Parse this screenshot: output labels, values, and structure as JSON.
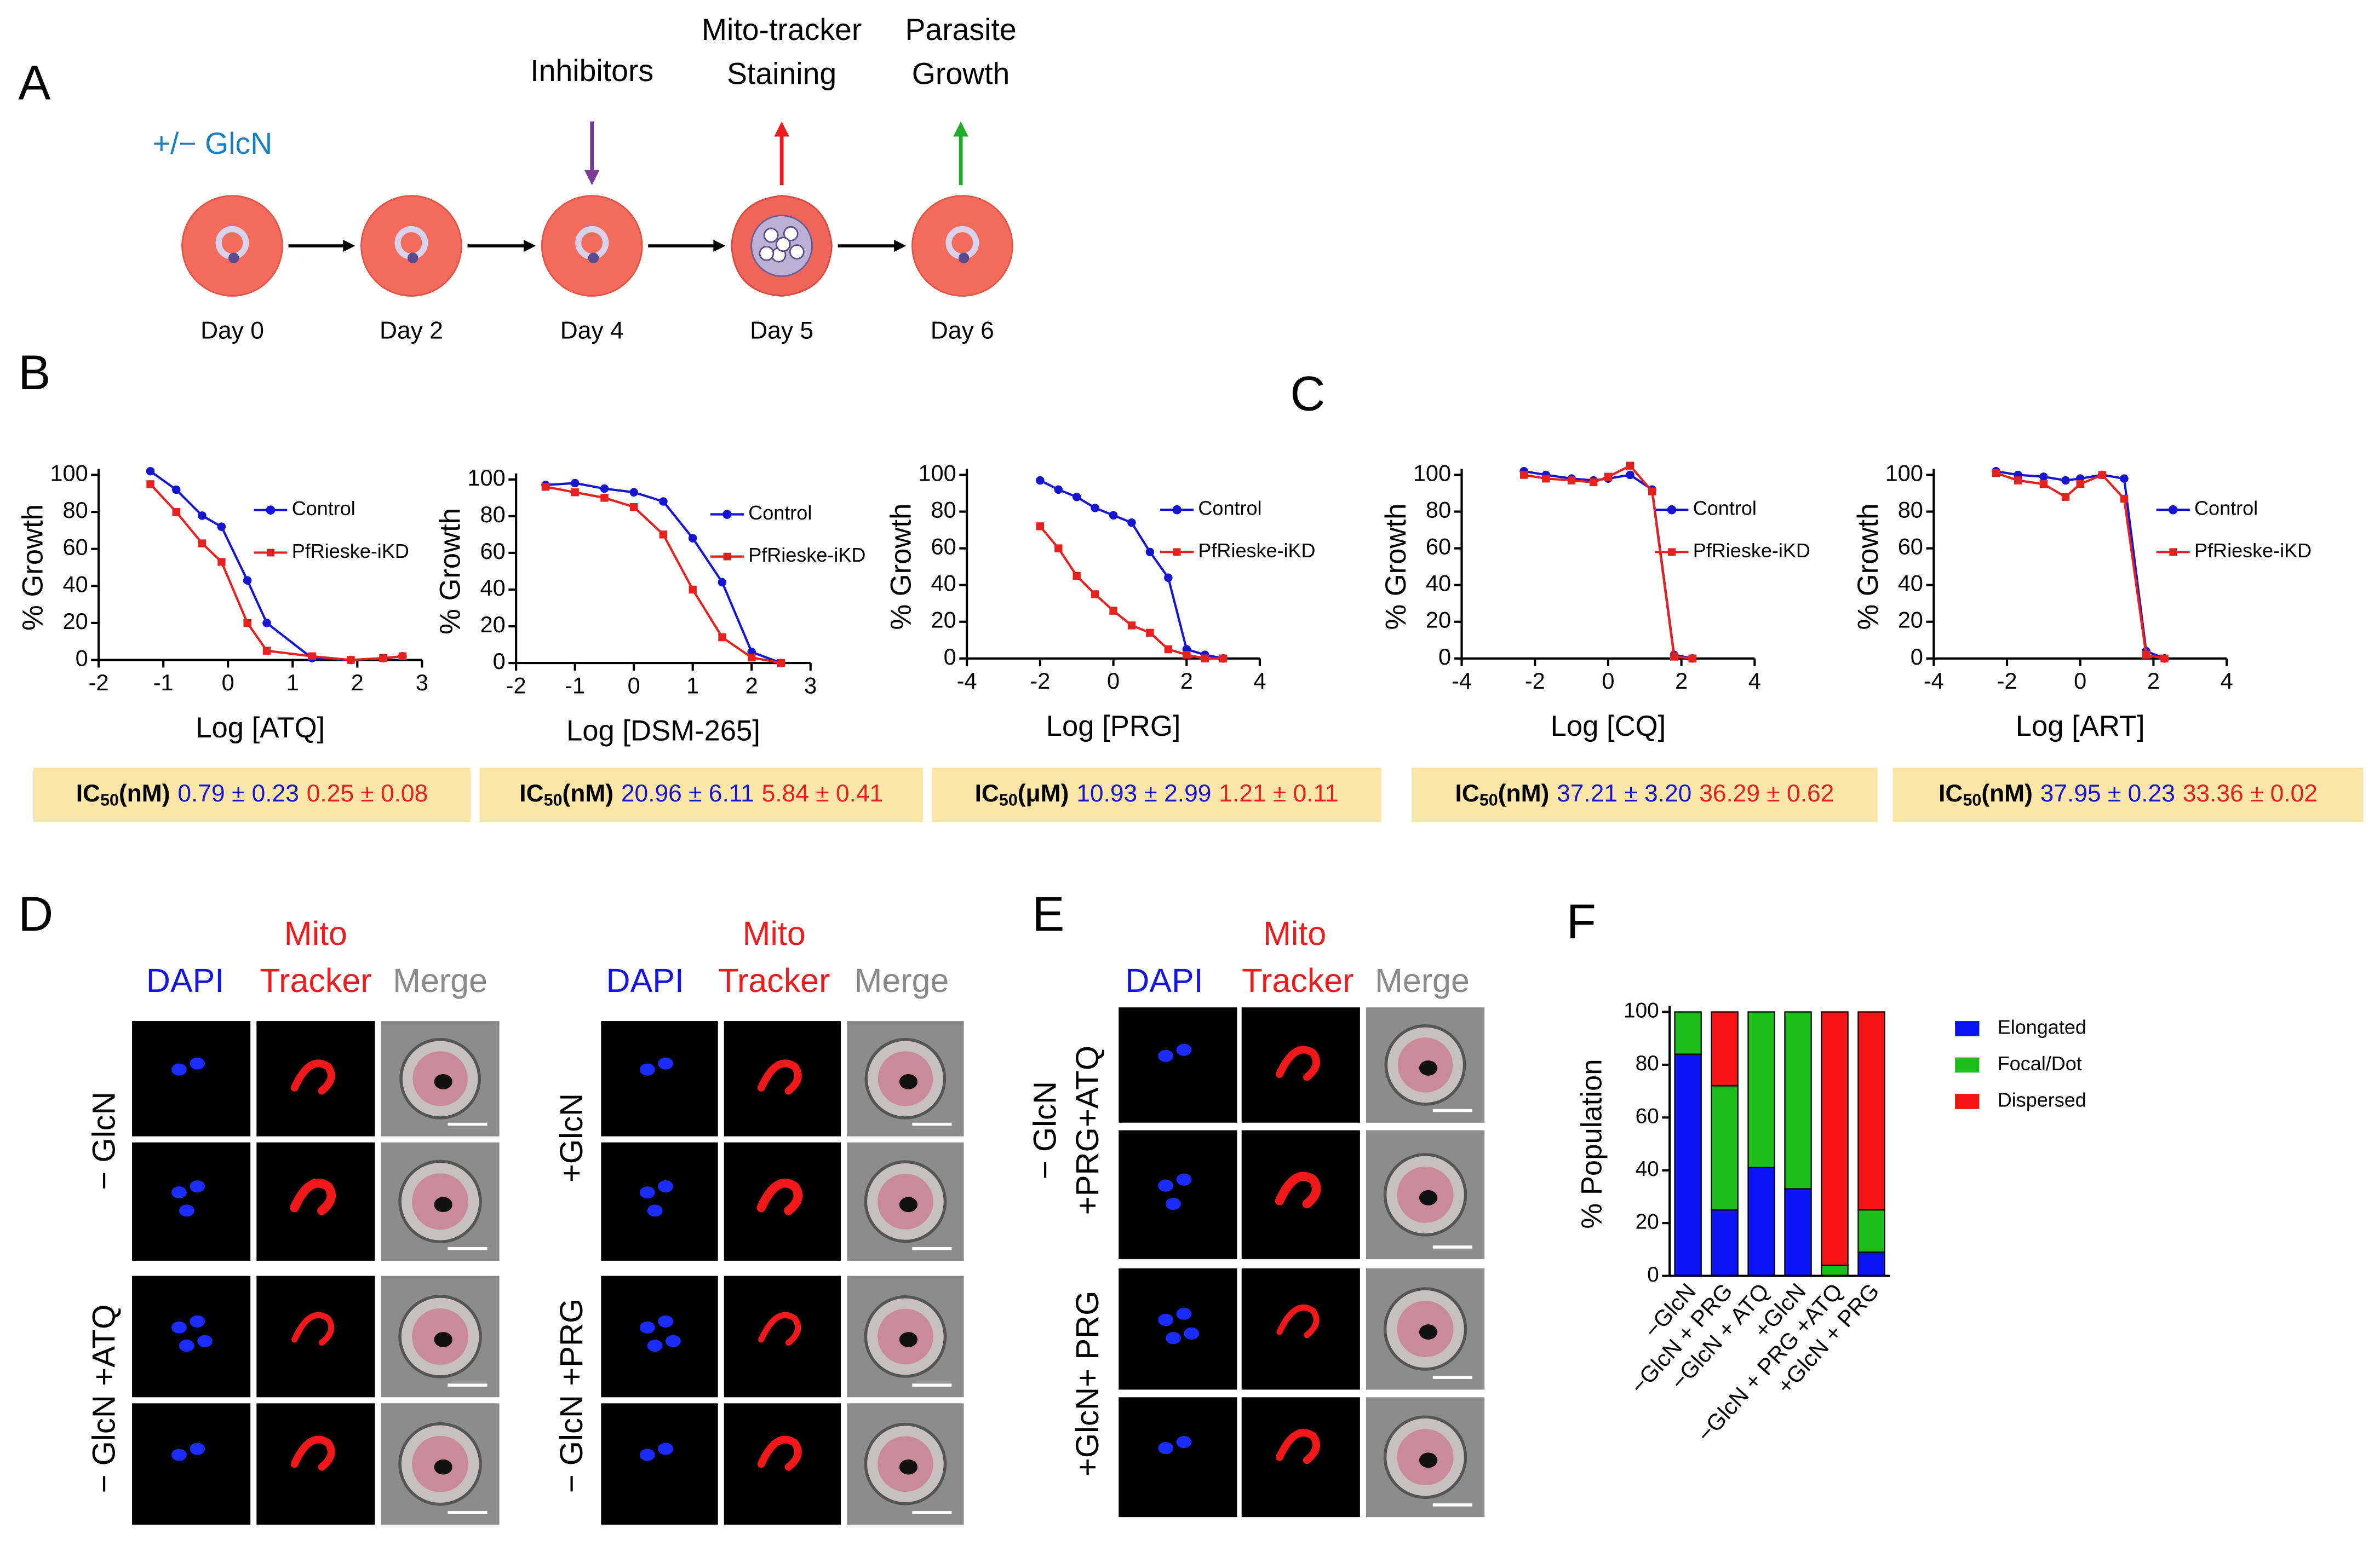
{
  "panels": [
    "A",
    "B",
    "C",
    "D",
    "E",
    "F"
  ],
  "timeline": {
    "treatment": "+/− GlcN",
    "days": [
      "Day 0",
      "Day 2",
      "Day 4",
      "Day 5",
      "Day 6"
    ],
    "events": [
      {
        "lines": [
          "Inhibitors"
        ],
        "color": "#7b3a96"
      },
      {
        "lines": [
          "Mito-tracker",
          "Staining"
        ],
        "color": "#ee1c1c"
      },
      {
        "lines": [
          "Parasite",
          "Growth"
        ],
        "color": "#1fae2a"
      }
    ]
  },
  "chart_data": [
    {
      "type": "line",
      "xlabel": "Log [ATQ]",
      "ylabel": "% Growth",
      "xlim": [
        -2,
        3
      ],
      "xticks": [
        -2,
        -1,
        0,
        1,
        2,
        3
      ],
      "ylim": [
        0,
        100
      ],
      "yticks": [
        0,
        20,
        40,
        60,
        80,
        100
      ],
      "x": [
        -1.2,
        -0.8,
        -0.4,
        -0.1,
        0.3,
        0.6,
        1.3,
        1.9,
        2.4,
        2.7
      ],
      "series": [
        {
          "name": "Control",
          "color": "#1414d2",
          "marker": "circle",
          "values": [
            102,
            92,
            78,
            72,
            43,
            20,
            1,
            0,
            1,
            2
          ]
        },
        {
          "name": "PfRieske-iKD",
          "color": "#e8201e",
          "marker": "square",
          "values": [
            95,
            80,
            63,
            53,
            20,
            5,
            2,
            0,
            1,
            2
          ]
        }
      ]
    },
    {
      "type": "line",
      "xlabel": "Log [DSM-265]",
      "ylabel": "% Growth",
      "xlim": [
        -2,
        3
      ],
      "xticks": [
        -2,
        -1,
        0,
        1,
        2,
        3
      ],
      "ylim": [
        0,
        100
      ],
      "yticks": [
        0,
        20,
        40,
        60,
        80,
        100
      ],
      "x": [
        -1.5,
        -1,
        -0.5,
        0,
        0.5,
        1,
        1.5,
        2,
        2.5
      ],
      "series": [
        {
          "name": "Control",
          "color": "#1414d2",
          "marker": "circle",
          "values": [
            97,
            98,
            95,
            93,
            88,
            68,
            44,
            6,
            0
          ]
        },
        {
          "name": "PfRieske-iKD",
          "color": "#e8201e",
          "marker": "square",
          "values": [
            96,
            93,
            90,
            85,
            70,
            40,
            14,
            3,
            0
          ]
        }
      ]
    },
    {
      "type": "line",
      "xlabel": "Log [PRG]",
      "ylabel": "% Growth",
      "xlim": [
        -4,
        4
      ],
      "xticks": [
        -4,
        -2,
        0,
        2,
        4
      ],
      "ylim": [
        0,
        100
      ],
      "yticks": [
        0,
        20,
        40,
        60,
        80,
        100
      ],
      "x": [
        -2,
        -1.5,
        -1,
        -0.5,
        0,
        0.5,
        1,
        1.5,
        2,
        2.5,
        3
      ],
      "series": [
        {
          "name": "Control",
          "color": "#1414d2",
          "marker": "circle",
          "values": [
            97,
            92,
            88,
            82,
            78,
            74,
            58,
            44,
            5,
            2,
            0
          ]
        },
        {
          "name": "PfRieske-iKD",
          "color": "#e8201e",
          "marker": "square",
          "values": [
            72,
            60,
            45,
            35,
            26,
            18,
            14,
            5,
            2,
            0,
            0
          ]
        }
      ]
    },
    {
      "type": "line",
      "xlabel": "Log [CQ]",
      "ylabel": "% Growth",
      "xlim": [
        -4,
        4
      ],
      "xticks": [
        -4,
        -2,
        0,
        2,
        4
      ],
      "ylim": [
        0,
        100
      ],
      "yticks": [
        0,
        20,
        40,
        60,
        80,
        100
      ],
      "x": [
        -2.3,
        -1.7,
        -1,
        -0.4,
        0,
        0.6,
        1.2,
        1.8,
        2.3
      ],
      "series": [
        {
          "name": "Control",
          "color": "#1414d2",
          "marker": "circle",
          "values": [
            102,
            100,
            98,
            97,
            98,
            100,
            92,
            2,
            0
          ]
        },
        {
          "name": "PfRieske-iKD",
          "color": "#e8201e",
          "marker": "square",
          "values": [
            100,
            98,
            97,
            96,
            99,
            105,
            91,
            1,
            0
          ]
        }
      ]
    },
    {
      "type": "line",
      "xlabel": "Log [ART]",
      "ylabel": "% Growth",
      "xlim": [
        -4,
        4
      ],
      "xticks": [
        -4,
        -2,
        0,
        2,
        4
      ],
      "ylim": [
        0,
        100
      ],
      "yticks": [
        0,
        20,
        40,
        60,
        80,
        100
      ],
      "x": [
        -2.3,
        -1.7,
        -1,
        -0.4,
        0,
        0.6,
        1.2,
        1.8,
        2.3
      ],
      "series": [
        {
          "name": "Control",
          "color": "#1414d2",
          "marker": "circle",
          "values": [
            102,
            100,
            99,
            97,
            98,
            100,
            98,
            4,
            0
          ]
        },
        {
          "name": "PfRieske-iKD",
          "color": "#e8201e",
          "marker": "square",
          "values": [
            101,
            97,
            95,
            88,
            95,
            100,
            87,
            2,
            0
          ]
        }
      ]
    },
    {
      "type": "stacked_bar",
      "ylabel": "% Population",
      "categories": [
        "−GlcN",
        "−GlcN + PRG",
        "−GlcN + ATQ",
        "+GlcN",
        "−GlcN + PRG +ATQ",
        "+GlcN + PRG"
      ],
      "ylim": [
        0,
        100
      ],
      "yticks": [
        0,
        20,
        40,
        60,
        80,
        100
      ],
      "series": [
        {
          "name": "Elongated",
          "color": "#0a14f5",
          "values": [
            84,
            25,
            41,
            33,
            0,
            9
          ]
        },
        {
          "name": "Focal/Dot",
          "color": "#1cc01c",
          "values": [
            16,
            47,
            59,
            67,
            4,
            16
          ]
        },
        {
          "name": "Dispersed",
          "color": "#f51414",
          "values": [
            0,
            28,
            0,
            0,
            96,
            75
          ]
        }
      ]
    }
  ],
  "ic50": [
    {
      "prefix": "IC",
      "sub": "50",
      "unit": "(nM)",
      "control": "0.79 ± 0.23",
      "kd": "0.25 ± 0.08"
    },
    {
      "prefix": "IC",
      "sub": "50",
      "unit": "(nM)",
      "control": "20.96 ± 6.11",
      "kd": "5.84 ± 0.41"
    },
    {
      "prefix": "IC",
      "sub": "50",
      "unit": "(μM)",
      "control": "10.93 ± 2.99",
      "kd": "1.21 ± 0.11"
    },
    {
      "prefix": "IC",
      "sub": "50",
      "unit": "(nM)",
      "control": "37.21 ± 3.20",
      "kd": "36.29 ± 0.62"
    },
    {
      "prefix": "IC",
      "sub": "50",
      "unit": "(nM)",
      "control": "37.95 ± 0.23",
      "kd": "33.36 ± 0.02"
    }
  ],
  "microscopy": {
    "channels": [
      "DAPI",
      "Mito",
      "Tracker",
      "Merge"
    ],
    "rows_d_left": [
      "− GlcN",
      "− GlcN +ATQ"
    ],
    "rows_d_right": [
      "+GlcN",
      "− GlcN +PRG"
    ],
    "rows_e": [
      [
        "− GlcN",
        "+PRG+ATQ"
      ],
      [
        "+GlcN+ PRG"
      ]
    ]
  }
}
